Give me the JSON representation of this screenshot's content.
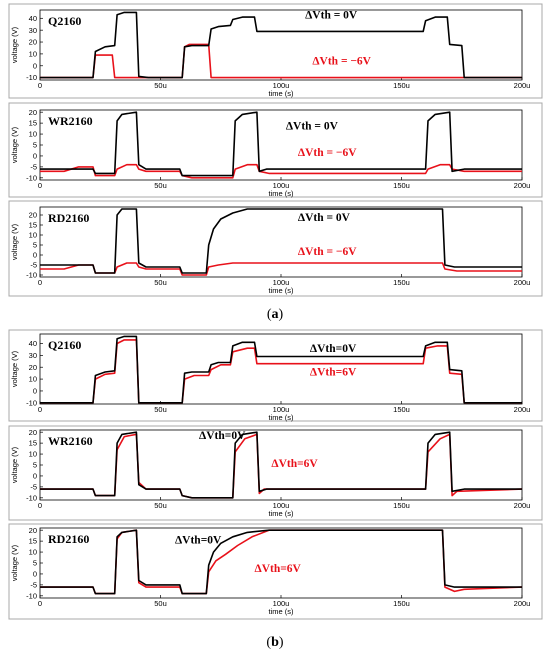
{
  "colors": {
    "black_trace": "#000000",
    "red_trace": "#e8111a"
  },
  "captions": {
    "a": "(a)",
    "b": "(b)"
  },
  "bold_letters": {
    "a": "a",
    "b": "b"
  },
  "chart_data": [
    {
      "type": "line",
      "id": "a1",
      "title": "Q2160",
      "xlabel": "time (s)",
      "ylabel": "voltage (V)",
      "xlim": [
        0,
        200
      ],
      "ylim": [
        -12,
        47
      ],
      "xticks": [
        0,
        50,
        100,
        150,
        200
      ],
      "xtick_labels": [
        "0",
        "50u",
        "100u",
        "150u",
        "200u"
      ],
      "yticks": [
        -10,
        0,
        10,
        20,
        30,
        40
      ],
      "ytick_labels": [
        "-10",
        "0",
        "10",
        "20",
        "30",
        "40"
      ],
      "annotations": [
        {
          "text": "ΔVth = 0V",
          "color": "black",
          "at": [
            110,
            40
          ]
        },
        {
          "text": "ΔVth = −6V",
          "color": "red",
          "at": [
            113,
            1
          ]
        }
      ],
      "series": [
        {
          "name": "ΔVth = 0V",
          "color": "black",
          "x": [
            0,
            22,
            23,
            27,
            31,
            32,
            35,
            40,
            41,
            45,
            46,
            59,
            60,
            63,
            70,
            71,
            74,
            79,
            80,
            84,
            89,
            90,
            95,
            159,
            160,
            164,
            169,
            170,
            175,
            176,
            200
          ],
          "y": [
            -10,
            -10,
            12,
            16,
            17,
            43,
            45,
            45,
            -9,
            -10,
            -10,
            -10,
            16,
            17,
            17,
            31,
            33,
            34,
            39,
            41,
            41,
            29,
            29,
            29,
            38,
            41,
            41,
            18,
            17,
            -10,
            -10
          ]
        },
        {
          "name": "ΔVth = −6V",
          "color": "red",
          "x": [
            0,
            22,
            23,
            30,
            31,
            59,
            60,
            62,
            70,
            71,
            200
          ],
          "y": [
            -10,
            -10,
            9,
            9,
            -10,
            -10,
            16,
            18,
            18,
            -10,
            -10
          ]
        }
      ]
    },
    {
      "type": "line",
      "id": "a2",
      "title": "WR2160",
      "xlabel": "time (s)",
      "ylabel": "voltage (V)",
      "xlim": [
        0,
        200
      ],
      "ylim": [
        -11,
        21
      ],
      "xticks": [
        0,
        50,
        100,
        150,
        200
      ],
      "xtick_labels": [
        "0",
        "50u",
        "100u",
        "150u",
        "200u"
      ],
      "yticks": [
        -10,
        -5,
        0,
        5,
        10,
        15,
        20
      ],
      "ytick_labels": [
        "-10",
        "-5",
        "0",
        "5",
        "10",
        "15",
        "20"
      ],
      "annotations": [
        {
          "text": "ΔVth = 0V",
          "color": "black",
          "at": [
            102,
            12
          ]
        },
        {
          "text": "ΔVth = −6V",
          "color": "red",
          "at": [
            107,
            0
          ]
        }
      ],
      "series": [
        {
          "name": "ΔVth = 0V",
          "color": "black",
          "x": [
            0,
            22,
            23,
            31,
            32,
            34,
            40,
            41,
            44,
            58,
            59,
            63,
            80,
            81,
            84,
            90,
            91,
            94,
            160,
            161,
            164,
            170,
            171,
            176,
            200
          ],
          "y": [
            -6,
            -6,
            -8,
            -8,
            16,
            19,
            20,
            -4,
            -6,
            -6,
            -9,
            -9,
            -9,
            16,
            19,
            20,
            -7,
            -6,
            -6,
            16,
            19,
            20,
            -7,
            -6,
            -6
          ]
        },
        {
          "name": "ΔVth = −6V",
          "color": "red",
          "x": [
            0,
            10,
            16,
            22,
            23,
            31,
            32,
            36,
            40,
            41,
            44,
            58,
            59,
            63,
            80,
            81,
            86,
            90,
            91,
            95,
            160,
            161,
            166,
            170,
            171,
            176,
            200
          ],
          "y": [
            -7,
            -7,
            -5,
            -5,
            -9,
            -9,
            -6,
            -4,
            -4,
            -6,
            -7,
            -7,
            -9,
            -10,
            -10,
            -6,
            -4,
            -4,
            -7,
            -8,
            -8,
            -6,
            -4,
            -4,
            -6,
            -7,
            -7
          ]
        }
      ]
    },
    {
      "type": "line",
      "id": "a3",
      "title": "RD2160",
      "xlabel": "time (s)",
      "ylabel": "voltage (V)",
      "xlim": [
        0,
        200
      ],
      "ylim": [
        -11,
        24
      ],
      "xticks": [
        0,
        50,
        100,
        150,
        200
      ],
      "xtick_labels": [
        "0",
        "50u",
        "100u",
        "150u",
        "200u"
      ],
      "yticks": [
        -10,
        -5,
        0,
        5,
        10,
        15,
        20
      ],
      "ytick_labels": [
        "-10",
        "-5",
        "0",
        "5",
        "10",
        "15",
        "20"
      ],
      "annotations": [
        {
          "text": "ΔVth = 0V",
          "color": "black",
          "at": [
            107,
            17
          ]
        },
        {
          "text": "ΔVth = −6V",
          "color": "red",
          "at": [
            107,
            0
          ]
        }
      ],
      "series": [
        {
          "name": "ΔVth = 0V",
          "color": "black",
          "x": [
            0,
            22,
            23,
            31,
            32,
            34,
            40,
            41,
            44,
            58,
            59,
            69,
            70,
            72,
            75,
            80,
            86,
            95,
            167,
            168,
            172,
            176,
            200
          ],
          "y": [
            -5,
            -5,
            -9,
            -9,
            20,
            23,
            23,
            -4,
            -6,
            -6,
            -9,
            -9,
            5,
            13,
            18,
            21,
            23,
            23,
            23,
            -5,
            -6,
            -6,
            -6
          ]
        },
        {
          "name": "ΔVth = −6V",
          "color": "red",
          "x": [
            0,
            10,
            16,
            22,
            23,
            31,
            32,
            36,
            40,
            41,
            44,
            58,
            59,
            69,
            70,
            74,
            80,
            95,
            167,
            168,
            173,
            200
          ],
          "y": [
            -7,
            -7,
            -5,
            -5,
            -9,
            -9,
            -6,
            -4,
            -4,
            -6,
            -7,
            -7,
            -10,
            -10,
            -6,
            -5,
            -4,
            -4,
            -4,
            -7,
            -8,
            -8
          ]
        }
      ]
    },
    {
      "type": "line",
      "id": "b1",
      "title": "Q2160",
      "xlabel": "time (s)",
      "ylabel": "voltage (V)",
      "xlim": [
        0,
        200
      ],
      "ylim": [
        -11,
        48
      ],
      "xticks": [
        0,
        50,
        100,
        150,
        200
      ],
      "xtick_labels": [
        "0",
        "50u",
        "100u",
        "150u",
        "200u"
      ],
      "yticks": [
        -10,
        0,
        10,
        20,
        30,
        40
      ],
      "ytick_labels": [
        "-10",
        "0",
        "10",
        "20",
        "30",
        "40"
      ],
      "annotations": [
        {
          "text": "ΔVth=0V",
          "color": "black",
          "at": [
            112,
            33
          ]
        },
        {
          "text": "ΔVth=6V",
          "color": "red",
          "at": [
            112,
            13
          ]
        }
      ],
      "series": [
        {
          "name": "ΔVth=0V",
          "color": "black",
          "x": [
            0,
            22,
            23,
            27,
            31,
            32,
            35,
            40,
            41,
            45,
            59,
            60,
            63,
            70,
            71,
            74,
            79,
            80,
            84,
            89,
            90,
            95,
            159,
            160,
            164,
            169,
            170,
            175,
            176,
            200
          ],
          "y": [
            -10,
            -10,
            13,
            16,
            17,
            44,
            46,
            46,
            -10,
            -10,
            -10,
            15,
            16,
            16,
            22,
            24,
            24,
            38,
            41,
            41,
            29,
            29,
            29,
            38,
            41,
            41,
            18,
            17,
            -10,
            -10
          ]
        },
        {
          "name": "ΔVth=6V",
          "color": "red",
          "x": [
            0,
            22,
            23,
            27,
            31,
            32,
            35,
            40,
            41,
            45,
            59,
            60,
            64,
            70,
            71,
            75,
            79,
            80,
            86,
            89,
            90,
            95,
            159,
            160,
            165,
            169,
            170,
            175,
            176,
            200
          ],
          "y": [
            -10,
            -10,
            10,
            14,
            15,
            40,
            43,
            43,
            -10,
            -10,
            -10,
            10,
            13,
            13,
            18,
            22,
            22,
            33,
            36,
            36,
            23,
            23,
            23,
            36,
            38,
            38,
            15,
            14,
            -10,
            -10
          ]
        }
      ]
    },
    {
      "type": "line",
      "id": "b2",
      "title": "WR2160",
      "xlabel": "time (s)",
      "ylabel": "voltage (V)",
      "xlim": [
        0,
        200
      ],
      "ylim": [
        -11,
        21
      ],
      "xticks": [
        0,
        50,
        100,
        150,
        200
      ],
      "xtick_labels": [
        "0",
        "50u",
        "100u",
        "150u",
        "200u"
      ],
      "yticks": [
        -10,
        -5,
        0,
        5,
        10,
        15,
        20
      ],
      "ytick_labels": [
        "-10",
        "-5",
        "0",
        "5",
        "10",
        "15",
        "20"
      ],
      "annotations": [
        {
          "text": "ΔVth=0V",
          "color": "black",
          "at": [
            66,
            17
          ]
        },
        {
          "text": "ΔVth=6V",
          "color": "red",
          "at": [
            96,
            4
          ]
        }
      ],
      "series": [
        {
          "name": "ΔVth=0V",
          "color": "black",
          "x": [
            0,
            22,
            23,
            31,
            32,
            34,
            40,
            41,
            44,
            58,
            59,
            63,
            80,
            81,
            84,
            90,
            91,
            94,
            160,
            161,
            164,
            170,
            171,
            176,
            200
          ],
          "y": [
            -6,
            -6,
            -9,
            -9,
            15,
            19,
            20,
            -4,
            -6,
            -6,
            -9,
            -10,
            -10,
            15,
            19,
            20,
            -7,
            -6,
            -6,
            15,
            19,
            20,
            -7,
            -6,
            -6
          ]
        },
        {
          "name": "ΔVth=6V",
          "color": "red",
          "x": [
            0,
            22,
            23,
            31,
            32,
            35,
            40,
            41,
            44,
            58,
            59,
            63,
            80,
            81,
            85,
            90,
            91,
            93,
            160,
            161,
            166,
            170,
            171,
            173,
            200
          ],
          "y": [
            -6,
            -6,
            -9,
            -9,
            12,
            18,
            19,
            -3,
            -6,
            -6,
            -9,
            -10,
            -10,
            11,
            17,
            19,
            -8,
            -6,
            -6,
            11,
            17,
            19,
            -9,
            -7,
            -6
          ]
        }
      ]
    },
    {
      "type": "line",
      "id": "b3",
      "title": "RD2160",
      "xlabel": "time (s)",
      "ylabel": "voltage (V)",
      "xlim": [
        0,
        200
      ],
      "ylim": [
        -11,
        21
      ],
      "xticks": [
        0,
        50,
        100,
        150,
        200
      ],
      "xtick_labels": [
        "0",
        "50u",
        "100u",
        "150u",
        "200u"
      ],
      "yticks": [
        -10,
        -5,
        0,
        5,
        10,
        15,
        20
      ],
      "ytick_labels": [
        "-10",
        "-5",
        "0",
        "5",
        "10",
        "15",
        "20"
      ],
      "annotations": [
        {
          "text": "ΔVth=0V",
          "color": "black",
          "at": [
            56,
            14
          ]
        },
        {
          "text": "ΔVth=6V",
          "color": "red",
          "at": [
            89,
            1
          ]
        }
      ],
      "series": [
        {
          "name": "ΔVth=0V",
          "color": "black",
          "x": [
            0,
            22,
            23,
            31,
            32,
            34,
            40,
            41,
            44,
            58,
            59,
            69,
            70,
            72,
            75,
            80,
            86,
            95,
            167,
            168,
            172,
            176,
            200
          ],
          "y": [
            -6,
            -6,
            -9,
            -9,
            17,
            19,
            20,
            -3,
            -5,
            -5,
            -9,
            -9,
            4,
            10,
            14,
            17,
            19,
            20,
            20,
            -5,
            -6,
            -6,
            -6
          ]
        },
        {
          "name": "ΔVth=6V",
          "color": "red",
          "x": [
            0,
            22,
            23,
            31,
            32,
            34,
            40,
            41,
            44,
            58,
            59,
            69,
            70,
            73,
            77,
            82,
            88,
            95,
            167,
            168,
            172,
            176,
            200
          ],
          "y": [
            -6,
            -6,
            -9,
            -9,
            16,
            19,
            20,
            -4,
            -6,
            -6,
            -9,
            -9,
            1,
            6,
            9,
            13,
            17,
            20,
            20,
            -6,
            -8,
            -7,
            -6
          ]
        }
      ]
    }
  ]
}
